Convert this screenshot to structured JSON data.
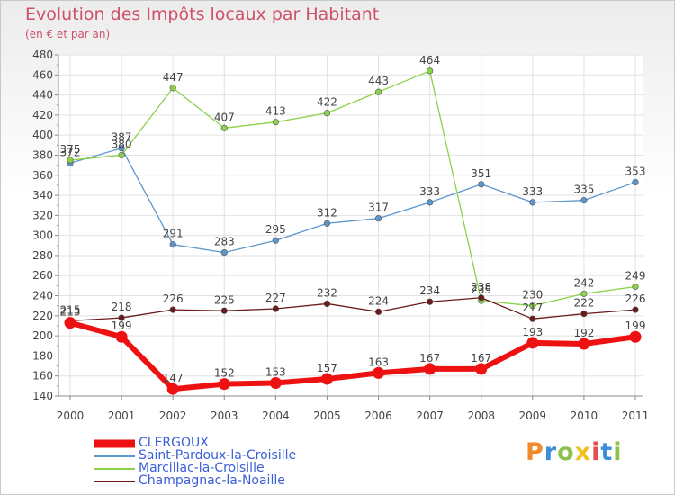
{
  "chart_data": {
    "type": "line",
    "title": "Evolution des Impôts locaux par Habitant",
    "subtitle": "(en € et par an)",
    "xlabel": "",
    "ylabel": "",
    "ylim": [
      140,
      480
    ],
    "y_ticks": [
      140,
      160,
      180,
      200,
      220,
      240,
      260,
      280,
      300,
      320,
      340,
      360,
      380,
      400,
      420,
      440,
      460,
      480
    ],
    "categories": [
      "2000",
      "2001",
      "2002",
      "2003",
      "2004",
      "2005",
      "2006",
      "2007",
      "2008",
      "2009",
      "2010",
      "2011"
    ],
    "grid": true,
    "legend_position": "bottom-left",
    "series": [
      {
        "name": "Saint-Pardoux-la-Croisille",
        "color": "#5b96cc",
        "values": [
          372,
          387,
          291,
          283,
          295,
          312,
          317,
          333,
          351,
          333,
          335,
          353
        ]
      },
      {
        "name": "Marcillac-la-Croisille",
        "color": "#8bd24a",
        "values": [
          375,
          380,
          447,
          407,
          413,
          422,
          443,
          464,
          235,
          230,
          242,
          249
        ]
      },
      {
        "name": "Champagnac-la-Noaille",
        "color": "#6a1a1a",
        "values": [
          215,
          218,
          226,
          225,
          227,
          232,
          224,
          234,
          238,
          217,
          222,
          226
        ]
      },
      {
        "name": "CLERGOUX",
        "color": "#ee1111",
        "values": [
          213,
          199,
          147,
          152,
          153,
          157,
          163,
          167,
          167,
          193,
          192,
          199
        ]
      }
    ]
  },
  "legend_order": [
    "CLERGOUX",
    "Saint-Pardoux-la-Croisille",
    "Marcillac-la-Croisille",
    "Champagnac-la-Noaille"
  ],
  "brand": {
    "letters": [
      "P",
      "r",
      "o",
      "x",
      "i",
      "t",
      "i"
    ],
    "colors": [
      "#f08a2a",
      "#3a8fd8",
      "#8bc34a",
      "#f0c020",
      "#e05050",
      "#3a8fd8",
      "#8bc34a"
    ]
  }
}
